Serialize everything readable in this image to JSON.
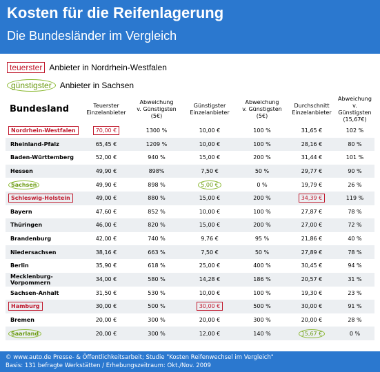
{
  "header": {
    "title": "Kosten für die Reifenlagerung",
    "subtitle": "Die Bundesländer im Vergleich"
  },
  "legend": [
    {
      "tag": "teuerster",
      "text": "Anbieter in Nordrhein-Westfalen"
    },
    {
      "tag": "günstigster",
      "text": "Anbieter in Sachsen"
    }
  ],
  "table": {
    "columns": [
      [
        "Bundesland"
      ],
      [
        "Teuerster",
        "Einzelanbieter"
      ],
      [
        "Abweichung",
        "v. Günstigsten",
        "(5€)"
      ],
      [
        "Günstigster",
        "Einzelanbieter"
      ],
      [
        "Abweichung",
        "v. Günstigsten",
        "(5€)"
      ],
      [
        "Durchschnitt",
        "Einzelanbieter"
      ],
      [
        "Abweichung",
        "v. Günstigsten",
        "(15,67€)"
      ]
    ],
    "rows": [
      [
        "Nordrhein-Westfalen",
        "70,00 €",
        "1300 %",
        "10,00 €",
        "100 %",
        "31,65 €",
        "102 %"
      ],
      [
        "Rheinland-Pfalz",
        "65,45 €",
        "1209 %",
        "10,00 €",
        "100 %",
        "28,16 €",
        "80 %"
      ],
      [
        "Baden-Württemberg",
        "52,00 €",
        "940 %",
        "15,00 €",
        "200 %",
        "31,44 €",
        "101 %"
      ],
      [
        "Hessen",
        "49,90 €",
        "898%",
        "7,50 €",
        "50 %",
        "29,77 €",
        "90 %"
      ],
      [
        "Sachsen",
        "49,90 €",
        "898 %",
        "5,00 €",
        "0 %",
        "19,79 €",
        "26 %"
      ],
      [
        "Schleswig-Holstein",
        "49,00 €",
        "880 %",
        "15,00 €",
        "200 %",
        "34,39 €",
        "119 %"
      ],
      [
        "Bayern",
        "47,60 €",
        "852 %",
        "10,00 €",
        "100 %",
        "27,87 €",
        "78 %"
      ],
      [
        "Thüringen",
        "46,00 €",
        "820 %",
        "15,00 €",
        "200 %",
        "27,00 €",
        "72 %"
      ],
      [
        "Brandenburg",
        "42,00 €",
        "740 %",
        "9,76 €",
        "95 %",
        "21,86 €",
        "40 %"
      ],
      [
        "Niedersachsen",
        "38,16 €",
        "663 %",
        "7,50 €",
        "50 %",
        "27,89 €",
        "78 %"
      ],
      [
        "Berlin",
        "35,90 €",
        "618 %",
        "25,00 €",
        "400 %",
        "30,45 €",
        "94 %"
      ],
      [
        "Mecklenburg-Vorpommern",
        "34,00 €",
        "580 %",
        "14,28 €",
        "186 %",
        "20,57 €",
        "31 %"
      ],
      [
        "Sachsen-Anhalt",
        "31,50 €",
        "530 %",
        "10,00 €",
        "100 %",
        "19,30 €",
        "23 %"
      ],
      [
        "Hamburg",
        "30,00 €",
        "500 %",
        "30,00 €",
        "500 %",
        "30,00 €",
        "91 %"
      ],
      [
        "Bremen",
        "20,00 €",
        "300 %",
        "20,00 €",
        "300 %",
        "20,00 €",
        "28 %"
      ],
      [
        "Saarland",
        "20,00 €",
        "300 %",
        "12,00 €",
        "140 %",
        "15,67 €",
        "0 %"
      ]
    ]
  },
  "footer": [
    "© www.auto.de Presse- & Öffentlichkeitsarbeit; Studie \"Kosten Reifenwechsel im Vergleich\"",
    "Basis: 131 befragte Werkstätten / Erhebungszeitraum: Okt./Nov. 2009"
  ]
}
